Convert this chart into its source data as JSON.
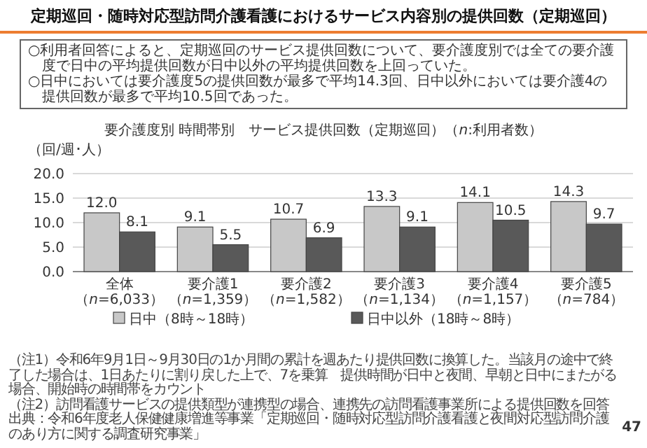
{
  "chart_data": {
    "type": "bar",
    "title": "定期巡回・随時対応型訪問介護看護におけるサービス内容別の提供回数（定期巡回）",
    "subtitle": "要介護度別 時間帯別　サービス提供回数（定期巡回）（*n*:利用者数）",
    "ylabel": "（回/週･人）",
    "categories": [
      "全体（*n*=6,033）",
      "要介護1（*n*=1,359）",
      "要介護2（*n*=1,582）",
      "要介護3（*n*=1,134）",
      "要介護4（*n*=1,157）",
      "要介護5（*n*=784）"
    ],
    "series": [
      {
        "name": "日中（8時～18時）",
        "color": "#c8c8c8",
        "values": [
          12.0,
          9.1,
          10.7,
          13.3,
          14.1,
          14.3
        ]
      },
      {
        "name": "日中以外（18時～8時）",
        "color": "#595959",
        "values": [
          8.1,
          5.5,
          6.9,
          9.1,
          10.5,
          9.7
        ]
      }
    ],
    "ylim": [
      0,
      20
    ],
    "yticks": [
      {
        "value": 0,
        "label": "0.0"
      },
      {
        "value": 5,
        "label": "5.0"
      },
      {
        "value": 10,
        "label": "10.0"
      },
      {
        "value": 15,
        "label": "15.0"
      },
      {
        "value": 20,
        "label": "20.0"
      }
    ],
    "grid": "y",
    "legend": "bottom",
    "value_labels": [
      [
        "12.0",
        "9.1",
        "10.7",
        "13.3",
        "14.1",
        "14.3"
      ],
      [
        "8.1",
        "5.5",
        "6.9",
        "9.1",
        "10.5",
        "9.7"
      ]
    ],
    "annotations": [
      "○利用者回答によると、定期巡回のサービス提供回数について、要介護度別では全ての要介護度で日中の平均提供回数が日中以外の平均提供回数を上回っていた。",
      "○日中においては要介護度5の提供回数が最多で平均14.3回、日中以外においては要介護4の提供回数が最多で平均10.5回であった。",
      "（注1）令和6年9月1日～9月30日の1か月間の累計を週あたり提供回数に換算した。当該月の途中で終了した場合は、1日あたりに割り戻した上で、7を乗算　提供時間が日中と夜間、早朝と日中にまたがる場合、開始時の時間帯をカウント",
      "（注2）訪問看護サービスの提供類型が連携型の場合、連携先の訪問看護事業所による提供回数を回答",
      "出典：令和6年度老人保健健康増進等事業「定期巡回・随時対応型訪問介護看護と夜間対応型訪問介護のあり方に関する調査研究事業」",
      "47"
    ]
  }
}
